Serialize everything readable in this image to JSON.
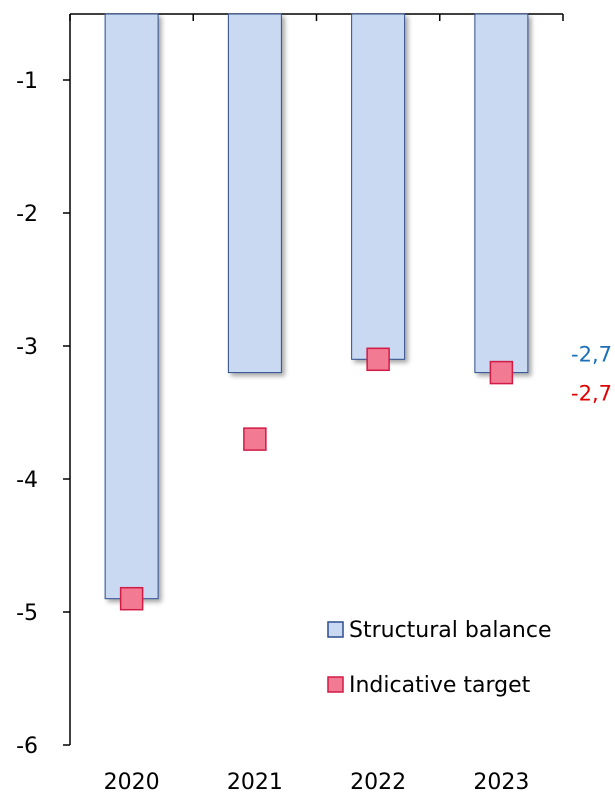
{
  "chart_data": {
    "type": "bar",
    "categories": [
      "2020",
      "2021",
      "2022",
      "2023"
    ],
    "series": [
      {
        "name": "Structural balance",
        "kind": "bar",
        "values": [
          -4.9,
          -3.2,
          -3.1,
          -3.2
        ],
        "fill": "#c9d9f2",
        "stroke": "#2e4d8c"
      },
      {
        "name": "Indicative target",
        "kind": "marker",
        "values": [
          -4.9,
          -3.7,
          -3.1,
          -3.2
        ],
        "fill": "#f27a93",
        "stroke": "#d11b45"
      }
    ],
    "y_ticks": [
      "-1",
      "-2",
      "-3",
      "-4",
      "-5",
      "-6"
    ],
    "ylim": [
      -6,
      -0.5
    ],
    "grid": false,
    "legend_position": "bottom-right",
    "annotations": [
      {
        "text": "-2,7",
        "color": "#1a6fb8"
      },
      {
        "text": "-2,7",
        "color": "#e00000"
      }
    ]
  }
}
